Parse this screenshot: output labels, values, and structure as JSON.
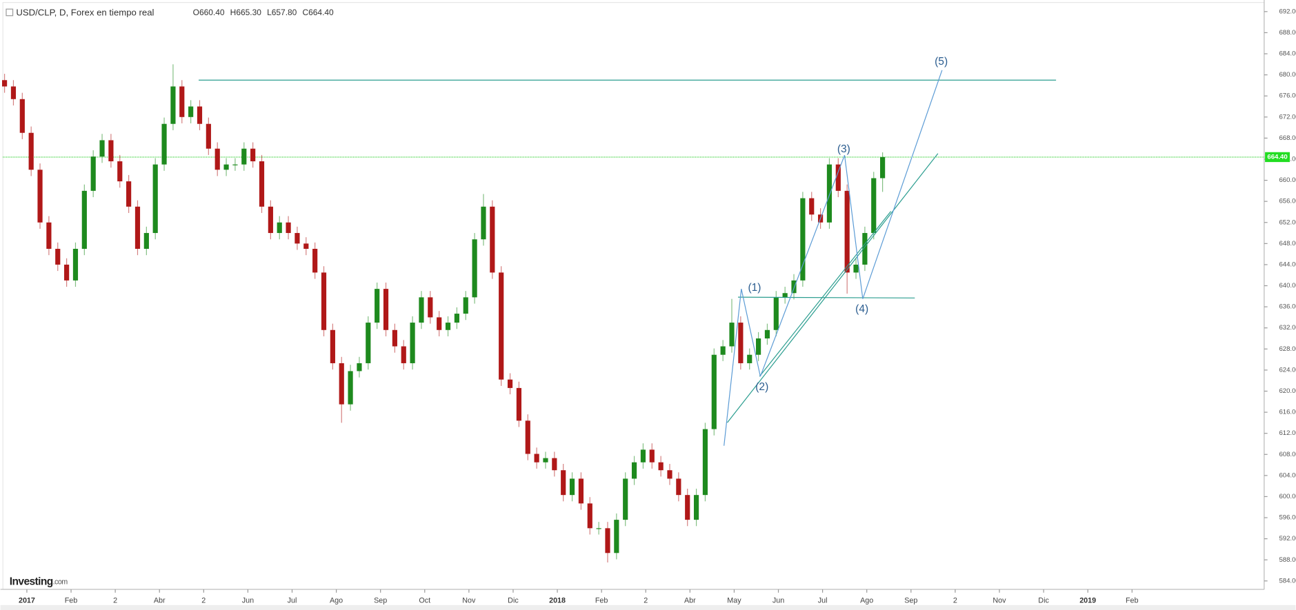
{
  "chart_data": {
    "type": "candlestick",
    "header": {
      "symbol": "USD/CLP, D, Forex en tiempo real",
      "o_label": "O",
      "o": "660.40",
      "h_label": "H",
      "h": "665.30",
      "l_label": "L",
      "l": "657.80",
      "c_label": "C",
      "c": "664.40"
    },
    "logo": "Investing",
    "logo_suffix": ".com",
    "up_color": "#1e8a1e",
    "down_color": "#b01818",
    "ylim": [
      582.4,
      694.2
    ],
    "yticks": [
      {
        "value": 584,
        "label": "584.00"
      },
      {
        "value": 588,
        "label": "588.00"
      },
      {
        "value": 592,
        "label": "592.00"
      },
      {
        "value": 596,
        "label": "596.00"
      },
      {
        "value": 600,
        "label": "600.00"
      },
      {
        "value": 604,
        "label": "604.00"
      },
      {
        "value": 608,
        "label": "608.00"
      },
      {
        "value": 612,
        "label": "612.00"
      },
      {
        "value": 616,
        "label": "616.00"
      },
      {
        "value": 620,
        "label": "620.00"
      },
      {
        "value": 624,
        "label": "624.00"
      },
      {
        "value": 628,
        "label": "628.00"
      },
      {
        "value": 632,
        "label": "632.00"
      },
      {
        "value": 636,
        "label": "636.00"
      },
      {
        "value": 640,
        "label": "640.00"
      },
      {
        "value": 644,
        "label": "644.00"
      },
      {
        "value": 648,
        "label": "648.00"
      },
      {
        "value": 652,
        "label": "652.00"
      },
      {
        "value": 656,
        "label": "656.00"
      },
      {
        "value": 660,
        "label": "660.00"
      },
      {
        "value": 664,
        "label": "664.00"
      },
      {
        "value": 668,
        "label": "668.00"
      },
      {
        "value": 672,
        "label": "672.00"
      },
      {
        "value": 676,
        "label": "676.00"
      },
      {
        "value": 680,
        "label": "680.00"
      },
      {
        "value": 684,
        "label": "684.00"
      },
      {
        "value": 688,
        "label": "688.00"
      },
      {
        "value": 692,
        "label": "692.00"
      }
    ],
    "x_labels": [
      "2017",
      "Feb",
      "2",
      "Abr",
      "2",
      "Jun",
      "Jul",
      "Ago",
      "Sep",
      "Oct",
      "Nov",
      "Dic",
      "2018",
      "Feb",
      "2",
      "Abr",
      "May",
      "Jun",
      "Jul",
      "Ago",
      "Sep",
      "2",
      "Nov",
      "Dic",
      "2019",
      "Feb"
    ],
    "last_price": {
      "value": 664.4,
      "label": "664.40"
    },
    "resistance": 679,
    "wave_labels": [
      "(1)",
      "(2)",
      "(3)",
      "(4)",
      "(5)"
    ],
    "ohlc": [
      [
        679.0,
        680.2,
        676.6,
        677.8
      ],
      [
        677.8,
        679.0,
        674.2,
        675.4
      ],
      [
        675.4,
        676.6,
        667.8,
        669
      ],
      [
        669,
        670.2,
        660.8,
        662
      ],
      [
        662,
        663.2,
        650.8,
        652
      ],
      [
        652,
        653.2,
        645.8,
        647
      ],
      [
        647,
        648.2,
        642.8,
        644
      ],
      [
        644,
        645.2,
        639.8,
        641
      ],
      [
        641,
        648.2,
        639.8,
        647
      ],
      [
        647,
        659.2,
        645.8,
        658
      ],
      [
        658,
        665.7,
        656.8,
        664.5
      ],
      [
        664.5,
        668.8,
        663.3,
        667.6
      ],
      [
        667.6,
        668.8,
        662.4,
        663.6
      ],
      [
        663.6,
        664.8,
        658.6,
        659.8
      ],
      [
        659.8,
        661,
        653.8,
        655
      ],
      [
        655,
        656.2,
        645.8,
        647
      ],
      [
        647,
        651.2,
        645.8,
        650
      ],
      [
        650,
        664.2,
        648.8,
        663
      ],
      [
        663,
        671.9,
        661.8,
        670.7
      ],
      [
        670.7,
        682,
        669.5,
        677.8
      ],
      [
        677.8,
        679,
        670.8,
        672
      ],
      [
        672,
        675.2,
        670.8,
        674
      ],
      [
        674,
        675.2,
        669.5,
        670.7
      ],
      [
        670.7,
        671.9,
        664.8,
        666
      ],
      [
        666,
        667.2,
        660.8,
        662
      ],
      [
        662,
        664.2,
        660.8,
        663
      ],
      [
        663,
        664.2,
        661.8,
        663
      ],
      [
        663,
        667.2,
        661.8,
        666
      ],
      [
        666,
        667.2,
        662.4,
        663.6
      ],
      [
        663.6,
        664.8,
        653.8,
        655
      ],
      [
        655,
        656.2,
        648.8,
        650
      ],
      [
        650,
        653.2,
        648.8,
        652
      ],
      [
        652,
        653.2,
        648.8,
        650
      ],
      [
        650,
        651.2,
        646.8,
        648
      ],
      [
        648,
        649.2,
        645.8,
        647
      ],
      [
        647,
        648.2,
        641.3,
        642.5
      ],
      [
        642.5,
        643.7,
        630.4,
        631.6
      ],
      [
        631.6,
        632.8,
        624.1,
        625.3
      ],
      [
        625.3,
        626.5,
        614,
        617.5
      ],
      [
        617.5,
        625,
        616.3,
        623.8
      ],
      [
        623.8,
        626.5,
        622.6,
        625.3
      ],
      [
        625.3,
        634.2,
        624.1,
        633
      ],
      [
        633,
        640.6,
        631.8,
        639.4
      ],
      [
        639.4,
        640.6,
        630.4,
        631.6
      ],
      [
        631.6,
        632.8,
        627.3,
        628.5
      ],
      [
        628.5,
        629.7,
        624.1,
        625.3
      ],
      [
        625.3,
        634.2,
        624.1,
        633
      ],
      [
        633,
        639,
        631.8,
        637.8
      ],
      [
        637.8,
        639,
        632.8,
        634
      ],
      [
        634,
        635.2,
        630.4,
        631.6
      ],
      [
        631.6,
        634.2,
        630.4,
        633
      ],
      [
        633,
        635.9,
        631.8,
        634.7
      ],
      [
        634.7,
        639,
        633.5,
        637.8
      ],
      [
        637.8,
        650,
        636.6,
        648.8
      ],
      [
        648.8,
        657.4,
        647.6,
        655
      ],
      [
        655,
        656.2,
        641.3,
        642.5
      ],
      [
        642.5,
        643.7,
        621,
        622.2
      ],
      [
        622.2,
        623.4,
        619.4,
        620.6
      ],
      [
        620.6,
        621.8,
        613.2,
        614.4
      ],
      [
        614.4,
        615.6,
        606.9,
        608.1
      ],
      [
        608.1,
        609.3,
        605.3,
        606.5
      ],
      [
        606.5,
        608.5,
        605.3,
        607.3
      ],
      [
        607.3,
        608.5,
        603.8,
        605
      ],
      [
        605,
        606.2,
        599.1,
        600.3
      ],
      [
        600.3,
        604.6,
        599.1,
        603.4
      ],
      [
        603.4,
        604.6,
        597.5,
        598.7
      ],
      [
        598.7,
        599.9,
        592.8,
        594
      ],
      [
        594,
        595.2,
        592.8,
        594
      ],
      [
        594,
        595.2,
        587.5,
        589.3
      ],
      [
        589.3,
        596.8,
        588.1,
        595.6
      ],
      [
        595.6,
        604.6,
        594.4,
        603.4
      ],
      [
        603.4,
        607.7,
        602.2,
        606.5
      ],
      [
        606.5,
        610.1,
        605.3,
        608.9
      ],
      [
        608.9,
        610.1,
        605.3,
        606.5
      ],
      [
        606.5,
        607.7,
        603.8,
        605
      ],
      [
        605,
        606.2,
        602.2,
        603.4
      ],
      [
        603.4,
        604.6,
        599.1,
        600.3
      ],
      [
        600.3,
        601.5,
        594.4,
        595.6
      ],
      [
        595.6,
        601.5,
        594.4,
        600.3
      ],
      [
        600.3,
        614,
        599.1,
        612.8
      ],
      [
        612.8,
        628.1,
        611.6,
        626.9
      ],
      [
        626.9,
        629.7,
        625.7,
        628.5
      ],
      [
        628.5,
        637.5,
        627.3,
        633
      ],
      [
        633,
        634.2,
        624.1,
        625.3
      ],
      [
        625.3,
        628.1,
        624.1,
        626.9
      ],
      [
        626.9,
        631.2,
        625.7,
        630
      ],
      [
        630,
        632.8,
        628.8,
        631.6
      ],
      [
        631.6,
        639,
        630.4,
        637.8
      ],
      [
        637.8,
        639.8,
        636.6,
        638.6
      ],
      [
        638.6,
        642.2,
        637.4,
        641
      ],
      [
        641,
        657.8,
        639.8,
        656.6
      ],
      [
        656.6,
        657.8,
        652.3,
        653.5
      ],
      [
        653.5,
        654.7,
        650.8,
        652
      ],
      [
        652,
        664.2,
        650.8,
        663
      ],
      [
        663,
        664.2,
        656.8,
        658
      ],
      [
        658,
        659.2,
        638.5,
        642.5
      ],
      [
        642.5,
        645.2,
        641.3,
        644
      ],
      [
        644,
        651.2,
        642.8,
        650
      ],
      [
        650,
        661.6,
        648.8,
        660.4
      ],
      [
        660.4,
        665.3,
        657.8,
        664.4
      ]
    ]
  }
}
